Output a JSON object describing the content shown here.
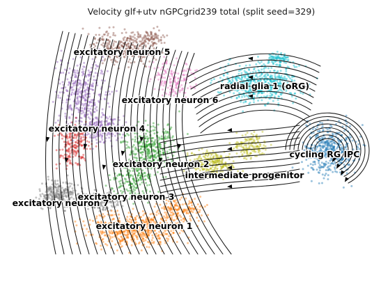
{
  "figure": {
    "title": "Velocity glf+utv nGPCgrid239 total (split seed=329)"
  },
  "clusters": [
    {
      "id": "exn5",
      "label": "excitatory neuron 5",
      "color": "#8c564b"
    },
    {
      "id": "rg1",
      "label": "radial glia 1 (oRG)",
      "color": "#17becf"
    },
    {
      "id": "exn6",
      "label": "excitatory neuron 6",
      "color": "#e377c2"
    },
    {
      "id": "exn4",
      "label": "excitatory neuron 4",
      "color": "#9467bd"
    },
    {
      "id": "cyc",
      "label": "cycling RG IPC",
      "color": "#1f77b4"
    },
    {
      "id": "exn2",
      "label": "excitatory neuron 2",
      "color": "#2ca02c"
    },
    {
      "id": "ip",
      "label": "intermediate progenitor",
      "color": "#bcbd22"
    },
    {
      "id": "exn3",
      "label": "excitatory neuron 3",
      "color": "#7f7f7f"
    },
    {
      "id": "exn7",
      "label": "excitatory neuron 7",
      "color": "#d62728"
    },
    {
      "id": "exn1",
      "label": "excitatory neuron 1",
      "color": "#ff7f0e"
    }
  ]
}
